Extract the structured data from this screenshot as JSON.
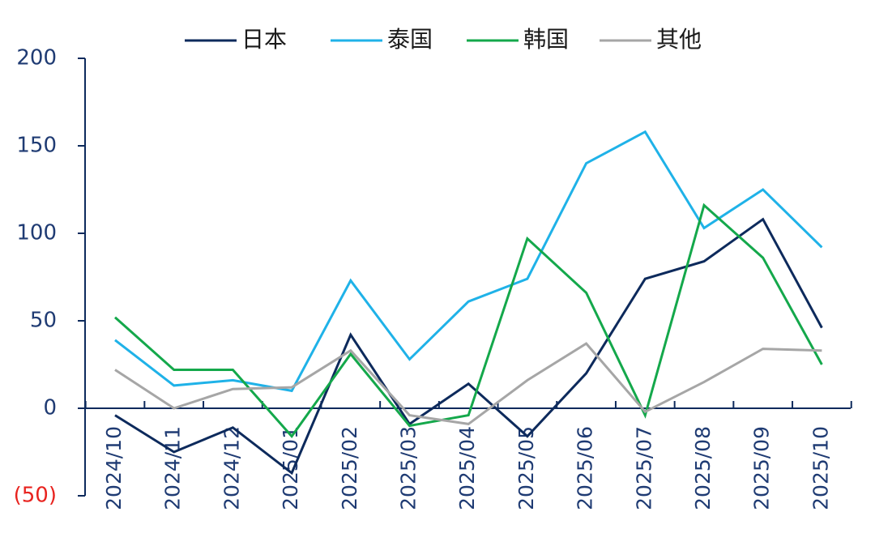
{
  "chart_data": {
    "type": "line",
    "categories": [
      "2024/10",
      "2024/11",
      "2024/12",
      "2025/01",
      "2025/02",
      "2025/03",
      "2025/04",
      "2025/05",
      "2025/06",
      "2025/07",
      "2025/08",
      "2025/09",
      "2025/10"
    ],
    "series": [
      {
        "name": "日本",
        "color": "#0d2a5c",
        "values": [
          -4,
          -25,
          -11,
          -37,
          42,
          -9,
          14,
          -16,
          20,
          74,
          84,
          108,
          46
        ]
      },
      {
        "name": "泰国",
        "color": "#1fb2e8",
        "values": [
          39,
          13,
          16,
          10,
          73,
          28,
          61,
          74,
          140,
          158,
          103,
          125,
          92
        ]
      },
      {
        "name": "韩国",
        "color": "#14a84b",
        "values": [
          52,
          22,
          22,
          -16,
          31,
          -10,
          -4,
          97,
          66,
          -4,
          116,
          86,
          25
        ]
      },
      {
        "name": "其他",
        "color": "#a6a6a6",
        "values": [
          22,
          0,
          11,
          12,
          33,
          -4,
          -9,
          16,
          37,
          -2,
          15,
          34,
          33
        ]
      }
    ],
    "y_ticks": [
      {
        "value": 200,
        "label": "200"
      },
      {
        "value": 150,
        "label": "150"
      },
      {
        "value": 100,
        "label": "100"
      },
      {
        "value": 50,
        "label": "50"
      },
      {
        "value": 0,
        "label": "0"
      },
      {
        "value": -50,
        "label": "(50)"
      }
    ],
    "ylim": [
      -50,
      200
    ],
    "title": "",
    "xlabel": "",
    "ylabel": "",
    "legend_position": "top",
    "grid": false,
    "axis_color": "#0d2a5c",
    "negative_label_color": "#e8231f"
  }
}
